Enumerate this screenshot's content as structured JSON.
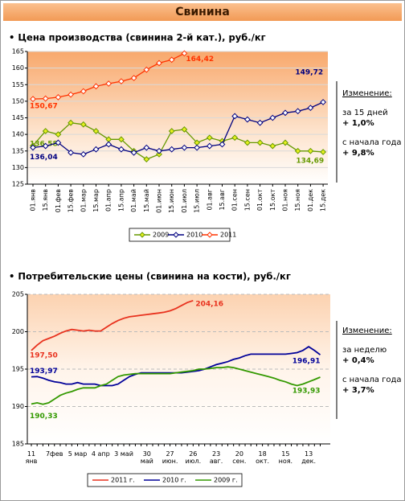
{
  "header": {
    "title": "Свинина"
  },
  "chart_data": [
    {
      "type": "line",
      "title": "• Цена производства (свинина 2-й кат.), руб./кг",
      "categories": [
        "01.янв",
        "15.янв",
        "01.фев",
        "15.фев",
        "01.мар",
        "15.мар",
        "01.апр",
        "15.апр",
        "01.май",
        "15.май",
        "01.июн",
        "15.июн",
        "01.июл",
        "15.июл",
        "01.авг",
        "15.авг",
        "01.сен",
        "15.сен",
        "01.окт",
        "15.окт",
        "01.ноя",
        "15.ноя",
        "01.дек",
        "15.дек"
      ],
      "series": [
        {
          "name": "2009",
          "color": "#669900",
          "marker_color": "#e6f020",
          "values": [
            136.58,
            141,
            140,
            143.5,
            143,
            141,
            138.5,
            138.5,
            135,
            132.5,
            134,
            141,
            141.5,
            137.5,
            139,
            138,
            139,
            137.5,
            137.5,
            136.5,
            137.5,
            135,
            135,
            134.69
          ],
          "value_labels": [
            "136,58",
            null,
            null,
            null,
            null,
            null,
            null,
            null,
            null,
            null,
            null,
            null,
            null,
            null,
            null,
            null,
            null,
            null,
            null,
            null,
            null,
            null,
            null,
            "134,69"
          ]
        },
        {
          "name": "2010",
          "color": "#000080",
          "marker_color": "#ffffff",
          "values": [
            136.04,
            136.5,
            137.5,
            134.5,
            134,
            135.5,
            137,
            135.5,
            134.5,
            136,
            135,
            135.5,
            136,
            136,
            136.5,
            137,
            145.5,
            144.5,
            143.5,
            145,
            146.5,
            147,
            148,
            149.72
          ],
          "value_labels": [
            "136,04",
            null,
            null,
            null,
            null,
            null,
            null,
            null,
            null,
            null,
            null,
            null,
            null,
            null,
            null,
            null,
            null,
            null,
            null,
            null,
            null,
            null,
            null,
            "149,72"
          ]
        },
        {
          "name": "2011",
          "color": "#ff3300",
          "marker_color": "#ffffff",
          "values": [
            150.67,
            150.8,
            151.2,
            152,
            153,
            154.5,
            155.3,
            156,
            157,
            159.5,
            161.5,
            162.5,
            164.42,
            null,
            null,
            null,
            null,
            null,
            null,
            null,
            null,
            null,
            null,
            null
          ],
          "value_labels": [
            "150,67",
            null,
            null,
            null,
            null,
            null,
            null,
            null,
            null,
            null,
            null,
            null,
            "164,42",
            null,
            null,
            null,
            null,
            null,
            null,
            null,
            null,
            null,
            null,
            null
          ]
        }
      ],
      "ylim": [
        125,
        165
      ],
      "yticks": [
        125,
        130,
        135,
        140,
        145,
        150,
        155,
        160,
        165
      ],
      "grid": true,
      "markers": true,
      "legend": "bottom",
      "annotations": [
        "Изменение:",
        "за 15 дней",
        "+ 1,0%",
        "с начала года",
        "+ 9,8%"
      ]
    },
    {
      "type": "line",
      "title": "• Потребительские цены (свинина на кости), руб./кг",
      "categories": [
        "11\nянв",
        null,
        null,
        null,
        "7фев",
        null,
        null,
        null,
        "5 мар",
        null,
        null,
        null,
        "4 апр",
        null,
        null,
        null,
        "3 май",
        null,
        null,
        null,
        "30\nмай",
        null,
        null,
        null,
        "27\nиюн.",
        null,
        null,
        null,
        "26\nиюл.",
        null,
        null,
        null,
        "23\nавг.",
        null,
        null,
        null,
        "20\nсен.",
        null,
        null,
        null,
        "18\nокт.",
        null,
        null,
        null,
        "15\nноя.",
        null,
        null,
        null,
        "13\nдек.",
        null,
        null
      ],
      "series": [
        {
          "name": "2011 г.",
          "color": "#e8321e",
          "values": [
            197.5,
            198.2,
            198.8,
            199.1,
            199.4,
            199.8,
            200.1,
            200.3,
            200.2,
            200.1,
            200.2,
            200.1,
            200.1,
            200.6,
            201.1,
            201.5,
            201.8,
            202,
            202.1,
            202.2,
            202.3,
            202.4,
            202.5,
            202.6,
            202.8,
            203.1,
            203.5,
            203.9,
            204.16,
            null,
            null,
            null,
            null,
            null,
            null,
            null,
            null,
            null,
            null,
            null,
            null,
            null,
            null,
            null,
            null,
            null,
            null,
            null,
            null,
            null,
            null
          ],
          "value_labels": [
            "197,50",
            null,
            null,
            null,
            null,
            null,
            null,
            null,
            null,
            null,
            null,
            null,
            null,
            null,
            null,
            null,
            null,
            null,
            null,
            null,
            null,
            null,
            null,
            null,
            null,
            null,
            null,
            null,
            "204,16",
            null,
            null,
            null,
            null,
            null,
            null,
            null,
            null,
            null,
            null,
            null,
            null,
            null,
            null,
            null,
            null,
            null,
            null,
            null,
            null,
            null,
            null
          ]
        },
        {
          "name": "2010 г.",
          "color": "#000099",
          "values": [
            193.97,
            194,
            193.8,
            193.5,
            193.3,
            193.2,
            193,
            193,
            193.2,
            193,
            193,
            193,
            192.8,
            192.8,
            192.8,
            193,
            193.5,
            194,
            194.3,
            194.5,
            194.5,
            194.5,
            194.5,
            194.5,
            194.5,
            194.5,
            194.5,
            194.6,
            194.7,
            194.8,
            195,
            195.3,
            195.6,
            195.8,
            196,
            196.3,
            196.5,
            196.8,
            197,
            197,
            197,
            197,
            197,
            197,
            197,
            197.1,
            197.2,
            197.5,
            198,
            197.5,
            196.91
          ],
          "value_labels": [
            "193,97",
            null,
            null,
            null,
            null,
            null,
            null,
            null,
            null,
            null,
            null,
            null,
            null,
            null,
            null,
            null,
            null,
            null,
            null,
            null,
            null,
            null,
            null,
            null,
            null,
            null,
            null,
            null,
            null,
            null,
            null,
            null,
            null,
            null,
            null,
            null,
            null,
            null,
            null,
            null,
            null,
            null,
            null,
            null,
            null,
            null,
            null,
            null,
            null,
            null,
            "196,91"
          ]
        },
        {
          "name": "2009 г.",
          "color": "#339900",
          "values": [
            190.33,
            190.5,
            190.3,
            190.5,
            191,
            191.5,
            191.8,
            192,
            192.3,
            192.5,
            192.5,
            192.5,
            192.8,
            193,
            193.5,
            194,
            194.2,
            194.3,
            194.4,
            194.4,
            194.4,
            194.4,
            194.4,
            194.4,
            194.4,
            194.5,
            194.6,
            194.7,
            194.8,
            195,
            195,
            195.1,
            195.2,
            195.2,
            195.3,
            195.2,
            195,
            194.8,
            194.6,
            194.4,
            194.2,
            194,
            193.8,
            193.5,
            193.3,
            193,
            192.8,
            193,
            193.3,
            193.6,
            193.93
          ],
          "value_labels": [
            "190,33",
            null,
            null,
            null,
            null,
            null,
            null,
            null,
            null,
            null,
            null,
            null,
            null,
            null,
            null,
            null,
            null,
            null,
            null,
            null,
            null,
            null,
            null,
            null,
            null,
            null,
            null,
            null,
            null,
            null,
            null,
            null,
            null,
            null,
            null,
            null,
            null,
            null,
            null,
            null,
            null,
            null,
            null,
            null,
            null,
            null,
            null,
            null,
            null,
            null,
            "193,93"
          ]
        }
      ],
      "ylim": [
        185,
        205
      ],
      "yticks": [
        185,
        190,
        195,
        200,
        205
      ],
      "grid": true,
      "markers": false,
      "legend": "bottom",
      "annotations": [
        "Изменение:",
        "за неделю",
        "+ 0,4%",
        "с начала года",
        "+ 3,7%"
      ]
    }
  ]
}
